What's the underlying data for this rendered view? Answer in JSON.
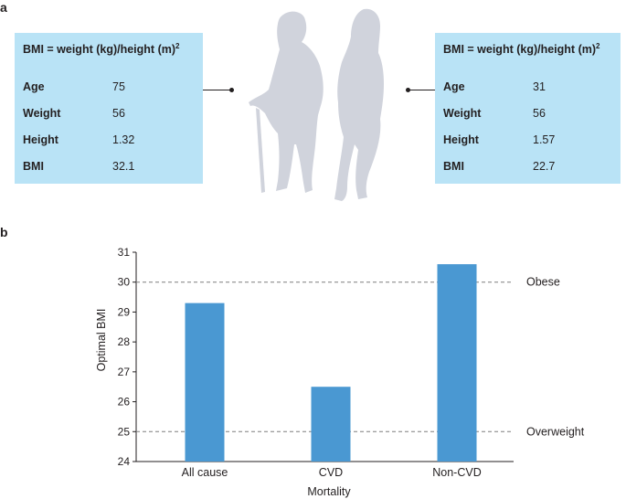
{
  "panel_a": {
    "label": "a",
    "formula": {
      "text": "BMI = weight (kg)/height (m)",
      "exponent": "2"
    },
    "left_person": {
      "rows": [
        {
          "key": "Age",
          "value": "75"
        },
        {
          "key": "Weight",
          "value": "56"
        },
        {
          "key": "Height",
          "value": "1.32"
        },
        {
          "key": "BMI",
          "value": "32.1"
        }
      ]
    },
    "right_person": {
      "rows": [
        {
          "key": "Age",
          "value": "31"
        },
        {
          "key": "Weight",
          "value": "56"
        },
        {
          "key": "Height",
          "value": "1.57"
        },
        {
          "key": "BMI",
          "value": "22.7"
        }
      ]
    }
  },
  "panel_b": {
    "label": "b"
  },
  "colors": {
    "card": "#b9e3f6",
    "bar": "#4a98d2",
    "silhouette": "#d0d3dc",
    "reference_line": "#7f7f7f"
  },
  "chart_data": {
    "type": "bar",
    "categories": [
      "All cause",
      "CVD",
      "Non-CVD"
    ],
    "values": [
      29.3,
      26.5,
      30.6
    ],
    "xlabel": "Mortality",
    "ylabel": "Optimal BMI",
    "ylim": [
      24,
      31
    ],
    "yticks": [
      24,
      25,
      26,
      27,
      28,
      29,
      30,
      31
    ],
    "grid": false,
    "reference_lines": [
      {
        "value": 30,
        "label": "Obese"
      },
      {
        "value": 25,
        "label": "Overweight"
      }
    ]
  }
}
